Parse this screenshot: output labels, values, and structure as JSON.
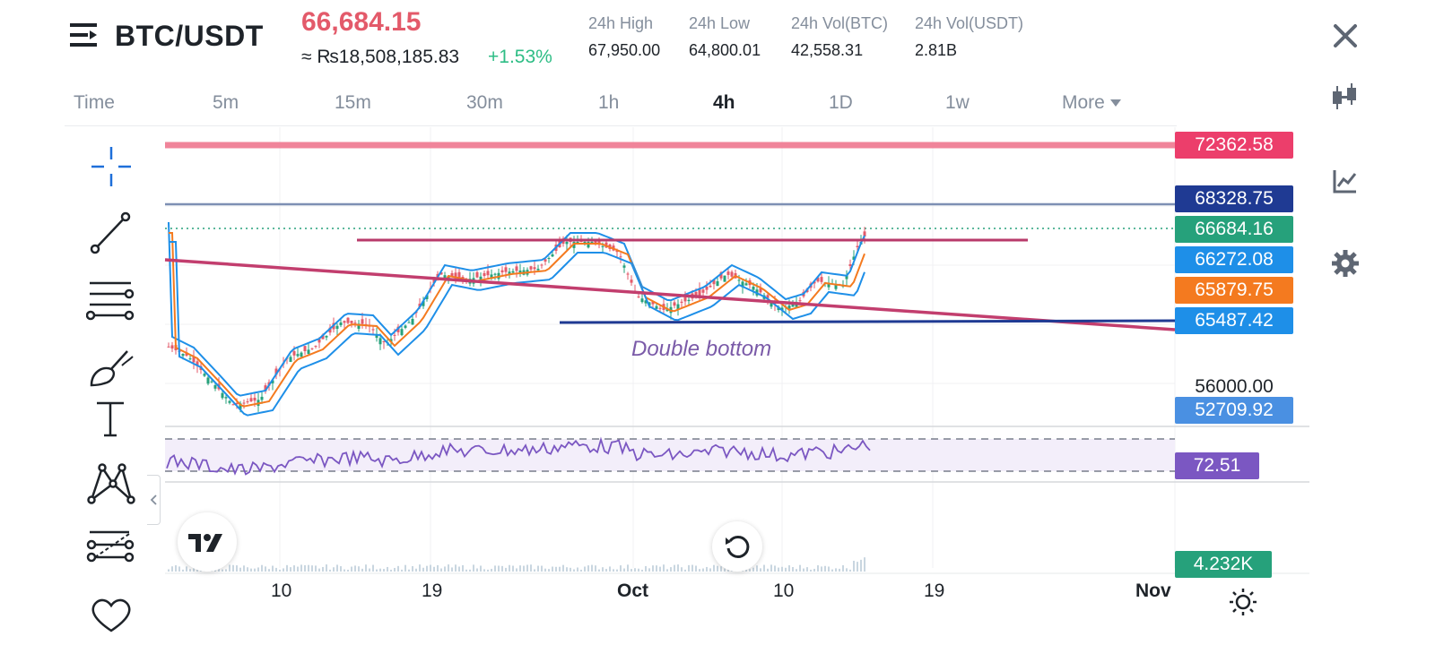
{
  "header": {
    "symbol": "BTC/USDT",
    "price": "66,684.15",
    "fiat_price": "≈ ₨18,508,185.83",
    "change": "+1.53%",
    "stats": [
      {
        "label": "24h High",
        "value": "67,950.00"
      },
      {
        "label": "24h Low",
        "value": "64,800.01"
      },
      {
        "label": "24h Vol(BTC)",
        "value": "42,558.31"
      },
      {
        "label": "24h Vol(USDT)",
        "value": "2.81B"
      }
    ]
  },
  "tabs": [
    {
      "label": "Time"
    },
    {
      "label": "5m"
    },
    {
      "label": "15m"
    },
    {
      "label": "30m"
    },
    {
      "label": "1h"
    },
    {
      "label": "4h",
      "active": true
    },
    {
      "label": "1D"
    },
    {
      "label": "1w"
    },
    {
      "label": "More"
    }
  ],
  "right_icons": [
    "close-icon",
    "candlestick-icon",
    "indicator-chart-icon",
    "gear-icon"
  ],
  "tools": [
    "crosshair-icon",
    "trend-line-icon",
    "horizontal-lines-icon",
    "brush-icon",
    "text-icon",
    "pattern-icon",
    "fib-icon",
    "heart-icon"
  ],
  "chart": {
    "price_tags": [
      {
        "value": "72362.58",
        "color": "#ec3e6b"
      },
      {
        "value": "68328.75",
        "color": "#1f3a93"
      },
      {
        "value": "66684.16",
        "color": "#26a17b"
      },
      {
        "value": "66272.08",
        "color": "#1e8fe8"
      },
      {
        "value": "65879.75",
        "color": "#f47a1f"
      },
      {
        "value": "65487.42",
        "color": "#1e8fe8"
      }
    ],
    "axis_price": "56000.00",
    "low_tag": {
      "value": "52709.92",
      "color": "#4a90e2"
    },
    "rsi_tag": {
      "value": "72.51",
      "color": "#7b57c2"
    },
    "volume_tag": {
      "value": "4.232K",
      "color": "#26a17b"
    },
    "annotation": "Double bottom",
    "x_labels": [
      "10",
      "19",
      "Oct",
      "10",
      "19",
      "Nov"
    ],
    "logo_text": "17"
  }
}
